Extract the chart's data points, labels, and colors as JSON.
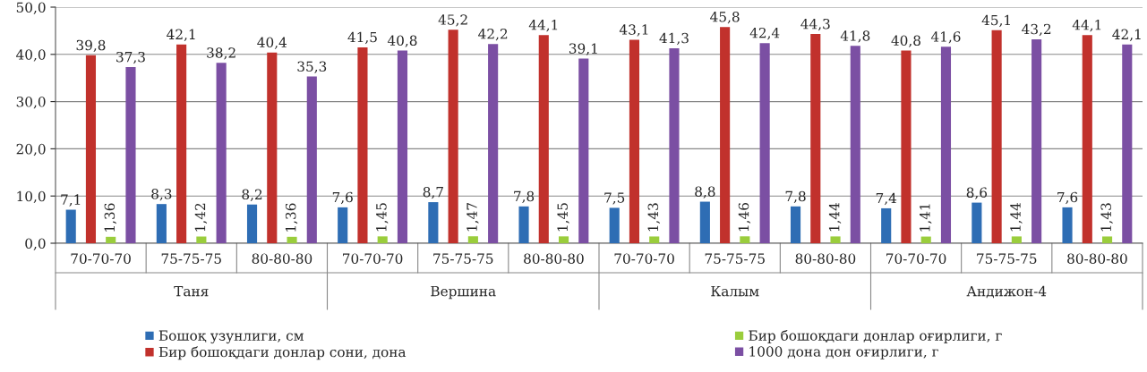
{
  "chart_data": {
    "type": "bar",
    "categories": [
      "70-70-70",
      "75-75-75",
      "80-80-80",
      "70-70-70",
      "75-75-75",
      "80-80-80",
      "70-70-70",
      "75-75-75",
      "80-80-80",
      "70-70-70",
      "75-75-75",
      "80-80-80"
    ],
    "annotations": [
      "Таня",
      "Вершина",
      "Калым",
      "Андижон-4"
    ],
    "series": [
      {
        "name": "Бошоқ узунлиги, см",
        "color": "#2e6db4",
        "values": [
          7.1,
          8.3,
          8.2,
          7.6,
          8.7,
          7.8,
          7.5,
          8.8,
          7.8,
          7.4,
          8.6,
          7.6
        ],
        "value_labels": [
          "7,1",
          "8,3",
          "8,2",
          "7,6",
          "8,7",
          "7,8",
          "7,5",
          "8,8",
          "7,8",
          "7,4",
          "8,6",
          "7,6"
        ]
      },
      {
        "name": "Бир бошоқдаги донлар сони, дона",
        "color": "#c1312c",
        "values": [
          39.8,
          42.1,
          40.4,
          41.5,
          45.2,
          44.1,
          43.1,
          45.8,
          44.3,
          40.8,
          45.1,
          44.1
        ],
        "value_labels": [
          "39,8",
          "42,1",
          "40,4",
          "41,5",
          "45,2",
          "44,1",
          "43,1",
          "45,8",
          "44,3",
          "40,8",
          "45,1",
          "44,1"
        ]
      },
      {
        "name": "Бир бошоқдаги донлар оғирлиги, г",
        "color": "#9acd3c",
        "values": [
          1.36,
          1.42,
          1.36,
          1.45,
          1.47,
          1.45,
          1.43,
          1.46,
          1.44,
          1.41,
          1.44,
          1.43
        ],
        "value_labels": [
          "1,36",
          "1,42",
          "1,36",
          "1,45",
          "1,47",
          "1,45",
          "1,43",
          "1,46",
          "1,44",
          "1,41",
          "1,44",
          "1,43"
        ]
      },
      {
        "name": "1000 дона дон оғирлиги, г",
        "color": "#7b4fa3",
        "values": [
          37.3,
          38.2,
          35.3,
          40.8,
          42.2,
          39.1,
          41.3,
          42.4,
          41.8,
          41.6,
          43.2,
          42.1
        ],
        "value_labels": [
          "37,3",
          "38,2",
          "35,3",
          "40,8",
          "42,2",
          "39,1",
          "41,3",
          "42,4",
          "41,8",
          "41,6",
          "43,2",
          "42,1"
        ]
      }
    ],
    "ylim": [
      0,
      50
    ],
    "yticks": [
      {
        "value": 0,
        "label": "0,0"
      },
      {
        "value": 10,
        "label": "10,0"
      },
      {
        "value": 20,
        "label": "20,0"
      },
      {
        "value": 30,
        "label": "30,0"
      },
      {
        "value": 40,
        "label": "40,0"
      },
      {
        "value": 50,
        "label": "50,0"
      }
    ],
    "grid": "y",
    "legend": "bottom"
  }
}
